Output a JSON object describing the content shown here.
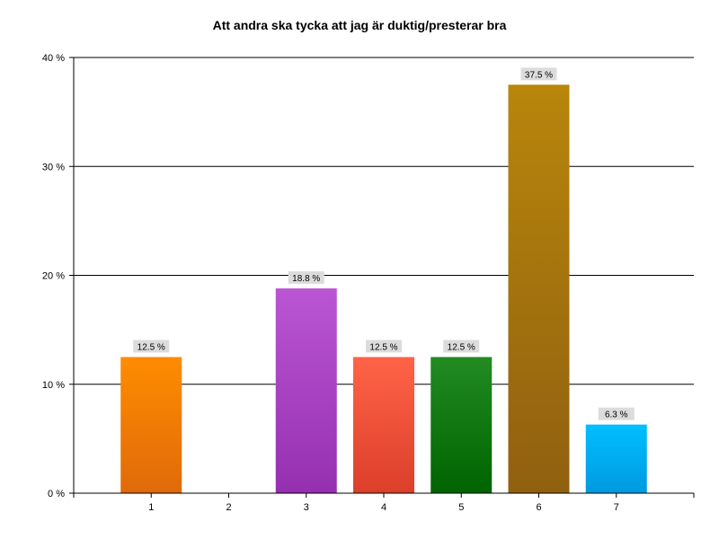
{
  "chart_data": {
    "type": "bar",
    "title": "Att andra ska tycka att jag är duktig/presterar bra",
    "xlabel": "",
    "ylabel": "",
    "categories": [
      "1",
      "2",
      "3",
      "4",
      "5",
      "6",
      "7"
    ],
    "values": [
      12.5,
      0,
      18.8,
      12.5,
      12.5,
      37.5,
      6.3
    ],
    "data_labels": [
      "12.5 %",
      "",
      "18.8 %",
      "12.5 %",
      "12.5 %",
      "37.5 %",
      "6.3 %"
    ],
    "ylim": [
      0,
      40
    ],
    "yticks": [
      0,
      10,
      20,
      30,
      40
    ],
    "ytick_labels": [
      "0 %",
      "10 %",
      "20 %",
      "30 %",
      "40 %"
    ],
    "grid": true,
    "legend": "none",
    "colors": [
      [
        "#ff8c00",
        "#e06a0a"
      ],
      [
        "#cccccc",
        "#999999"
      ],
      [
        "#ba55d3",
        "#9530b0"
      ],
      [
        "#ff6347",
        "#dc3f2a"
      ],
      [
        "#228b22",
        "#006400"
      ],
      [
        "#b8860b",
        "#906010"
      ],
      [
        "#00bfff",
        "#0099e0"
      ]
    ],
    "label_background": "#dcdcdc"
  }
}
